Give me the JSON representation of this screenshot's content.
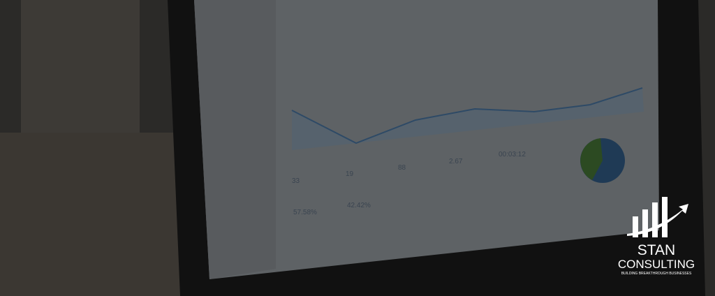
{
  "screen": {
    "metrics": [
      "33",
      "19",
      "88",
      "2.67",
      "00:03:12",
      "57.58%",
      "42.42%"
    ]
  },
  "logo": {
    "name_line1": "STAN",
    "name_line2": "CONSULTING",
    "tagline": "BUILDING BREAKTHROUGH BUSINESSES"
  }
}
